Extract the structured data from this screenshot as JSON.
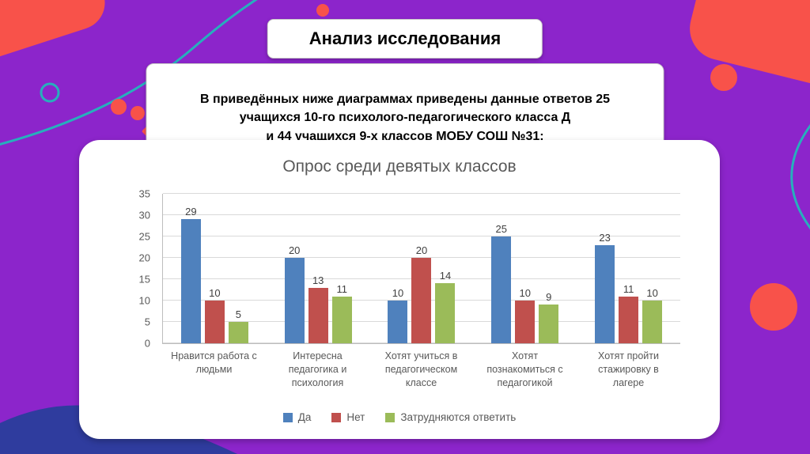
{
  "slide": {
    "title": "Анализ исследования",
    "description": "В приведённых ниже диаграммах приведены данные ответов 25\nучащихся 10-го психолого-педагогического класса Д\nи 44 учащихся 9-х классов МОБУ СОШ №31:"
  },
  "chart_data": {
    "type": "bar",
    "title": "Опрос среди девятых классов",
    "categories": [
      "Нравится работа с людьми",
      "Интересна педагогика и психология",
      "Хотят учиться в педагогическом классе",
      "Хотят познакомиться с педагогикой",
      "Хотят пройти стажировку в лагере"
    ],
    "series": [
      {
        "name": "Да",
        "color": "#4F81BD",
        "values": [
          29,
          20,
          10,
          25,
          23
        ]
      },
      {
        "name": "Нет",
        "color": "#C0504D",
        "values": [
          10,
          13,
          20,
          10,
          11
        ]
      },
      {
        "name": "Затрудняются ответить",
        "color": "#9BBB59",
        "values": [
          5,
          11,
          14,
          9,
          10
        ]
      }
    ],
    "ylim": [
      0,
      35
    ],
    "yticks": [
      0,
      5,
      10,
      15,
      20,
      25,
      30,
      35
    ],
    "grid": true,
    "legend_position": "bottom"
  },
  "colors": {
    "background": "#8C25CB",
    "accent_coral": "#F8524A",
    "accent_teal": "#27AFBC",
    "accent_blue": "#2F3C9E"
  }
}
